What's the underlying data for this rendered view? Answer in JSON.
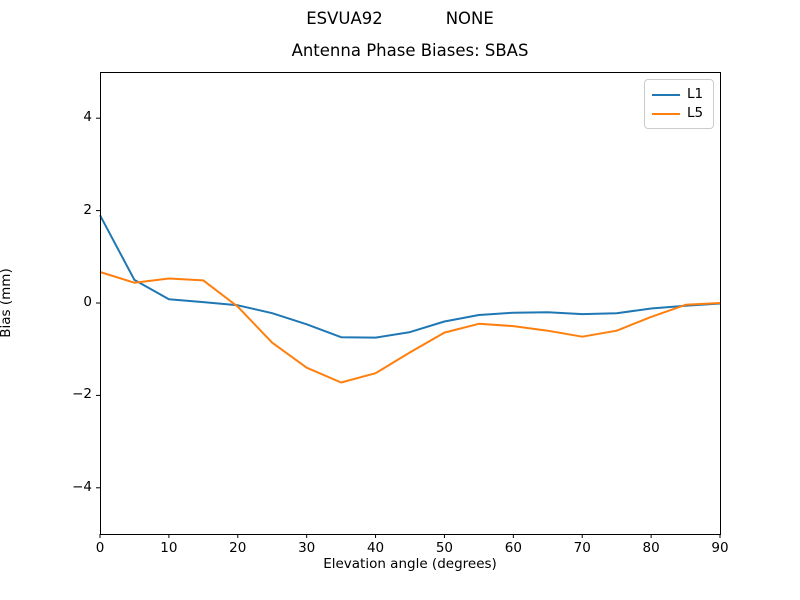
{
  "chart_data": {
    "type": "line",
    "suptitle": "ESVUA92            NONE",
    "title": "Antenna Phase Biases: SBAS",
    "xlabel": "Elevation angle (degrees)",
    "ylabel": "Bias (mm)",
    "xlim": [
      0,
      90
    ],
    "ylim": [
      -5,
      5
    ],
    "xticks": [
      0,
      10,
      20,
      30,
      40,
      50,
      60,
      70,
      80,
      90
    ],
    "yticks": [
      4,
      2,
      0,
      -2,
      -4
    ],
    "grid": false,
    "legend_position": "upper right",
    "x": [
      0,
      5,
      10,
      15,
      20,
      25,
      30,
      35,
      40,
      45,
      50,
      55,
      60,
      65,
      70,
      75,
      80,
      85,
      90
    ],
    "series": [
      {
        "name": "L1",
        "color": "#1f77b4",
        "values": [
          1.9,
          0.5,
          0.08,
          0.02,
          -0.05,
          -0.22,
          -0.46,
          -0.74,
          -0.75,
          -0.63,
          -0.4,
          -0.26,
          -0.21,
          -0.2,
          -0.24,
          -0.22,
          -0.12,
          -0.06,
          -0.01
        ]
      },
      {
        "name": "L5",
        "color": "#ff7f0e",
        "values": [
          0.67,
          0.44,
          0.53,
          0.49,
          -0.08,
          -0.86,
          -1.4,
          -1.72,
          -1.52,
          -1.07,
          -0.64,
          -0.45,
          -0.5,
          -0.6,
          -0.73,
          -0.6,
          -0.3,
          -0.04,
          0.0
        ]
      }
    ],
    "frame_color": "#000000",
    "background_color": "#ffffff"
  }
}
